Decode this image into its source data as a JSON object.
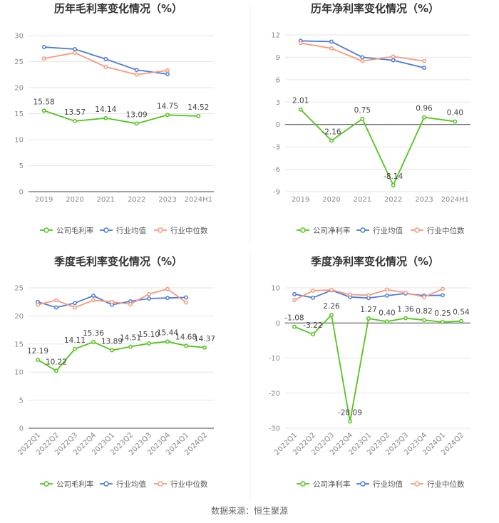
{
  "footer": "数据来源：恒生聚源",
  "colors": {
    "company": "#52c41a",
    "avg": "#4a7bdc",
    "median": "#f59a7a"
  },
  "chart_data": [
    {
      "type": "line",
      "title": "历年毛利率变化情况（%）",
      "categories": [
        "2019",
        "2020",
        "2021",
        "2022",
        "2023",
        "2024H1"
      ],
      "yticks": [
        "0",
        "5",
        "10",
        "15",
        "20",
        "25",
        "30"
      ],
      "ylim": [
        0,
        30
      ],
      "series": [
        {
          "name": "公司毛利率",
          "role": "company",
          "values": [
            15.58,
            13.57,
            14.14,
            13.09,
            14.75,
            14.52
          ],
          "labels": [
            "15.58",
            "13.57",
            "14.14",
            "13.09",
            "14.75",
            "14.52"
          ]
        },
        {
          "name": "行业均值",
          "role": "avg",
          "values": [
            27.8,
            27.4,
            25.5,
            23.4,
            22.6,
            null
          ]
        },
        {
          "name": "行业中位数",
          "role": "median",
          "values": [
            25.6,
            26.7,
            24.0,
            22.5,
            23.3,
            null
          ]
        }
      ]
    },
    {
      "type": "line",
      "title": "历年净利率变化情况（%）",
      "categories": [
        "2019",
        "2020",
        "2021",
        "2022",
        "2023",
        "2024H1"
      ],
      "yticks": [
        "-9",
        "-6",
        "-3",
        "0",
        "3",
        "6",
        "9",
        "12"
      ],
      "ylim": [
        -9,
        12
      ],
      "series": [
        {
          "name": "公司净利率",
          "role": "company",
          "values": [
            2.01,
            -2.16,
            0.75,
            -8.14,
            0.96,
            0.4
          ],
          "labels": [
            "2.01",
            "-2.16",
            "0.75",
            "-8.14",
            "0.96",
            "0.40"
          ]
        },
        {
          "name": "行业均值",
          "role": "avg",
          "values": [
            11.2,
            11.1,
            9.0,
            8.6,
            7.6,
            null
          ]
        },
        {
          "name": "行业中位数",
          "role": "median",
          "values": [
            10.9,
            10.2,
            8.5,
            9.1,
            8.5,
            null
          ]
        }
      ]
    },
    {
      "type": "line",
      "title": "季度毛利率变化情况（%）",
      "categories": [
        "2022Q1",
        "2022Q2",
        "2022Q3",
        "2022Q4",
        "2023Q1",
        "2023Q2",
        "2023Q3",
        "2023Q4",
        "2024Q1",
        "2024Q2"
      ],
      "yticks": [
        "0",
        "5",
        "10",
        "15",
        "20",
        "25"
      ],
      "ylim": [
        0,
        25
      ],
      "series": [
        {
          "name": "公司毛利率",
          "role": "company",
          "values": [
            12.19,
            10.22,
            14.11,
            15.36,
            13.89,
            14.51,
            15.1,
            15.44,
            14.68,
            14.37
          ],
          "labels": [
            "12.19",
            "10.22",
            "14.11",
            "15.36",
            "13.89",
            "14.51",
            "15.10",
            "15.44",
            "14.68",
            "14.37"
          ]
        },
        {
          "name": "行业均值",
          "role": "avg",
          "values": [
            22.5,
            21.5,
            22.3,
            23.6,
            22.0,
            22.6,
            23.1,
            23.2,
            23.3,
            null
          ]
        },
        {
          "name": "行业中位数",
          "role": "median",
          "values": [
            22.0,
            22.8,
            21.5,
            22.8,
            22.5,
            22.1,
            23.9,
            24.8,
            22.4,
            null
          ]
        }
      ]
    },
    {
      "type": "line",
      "title": "季度净利率变化情况（%）",
      "categories": [
        "2022Q1",
        "2022Q2",
        "2022Q3",
        "2022Q4",
        "2023Q1",
        "2023Q2",
        "2023Q3",
        "2023Q4",
        "2024Q1",
        "2024Q2"
      ],
      "yticks": [
        "-30",
        "-20",
        "-10",
        "0",
        "10"
      ],
      "ylim": [
        -30,
        10
      ],
      "series": [
        {
          "name": "公司净利率",
          "role": "company",
          "values": [
            -1.08,
            -3.22,
            2.26,
            -28.09,
            1.27,
            0.4,
            1.36,
            0.82,
            0.25,
            0.54
          ],
          "labels": [
            "-1.08",
            "-3.22",
            "2.26",
            "-28.09",
            "1.27",
            "0.40",
            "1.36",
            "0.82",
            "0.25",
            "0.54"
          ]
        },
        {
          "name": "行业均值",
          "role": "avg",
          "values": [
            8.2,
            7.2,
            9.3,
            7.4,
            7.1,
            7.8,
            8.4,
            7.8,
            7.9,
            null
          ]
        },
        {
          "name": "行业中位数",
          "role": "median",
          "values": [
            6.5,
            9.2,
            9.4,
            8.1,
            7.9,
            9.5,
            8.6,
            7.4,
            9.7,
            null
          ]
        }
      ]
    }
  ]
}
